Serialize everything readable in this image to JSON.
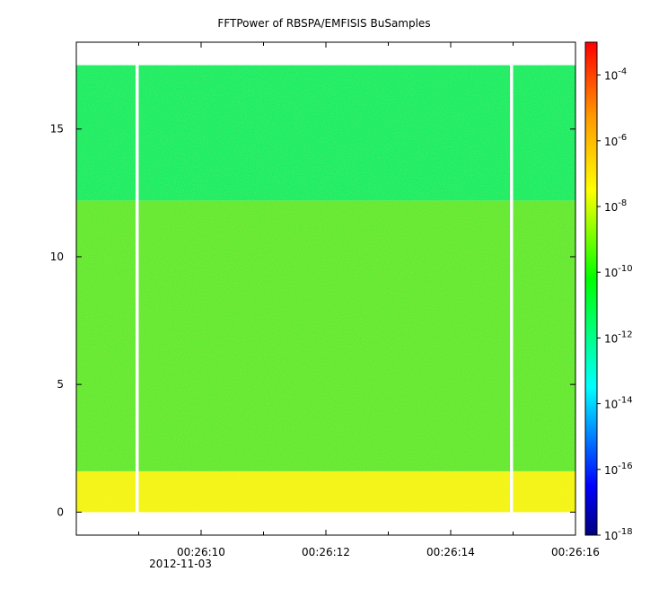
{
  "chart_data": {
    "type": "heatmap",
    "title": "FFTPower of RBSPA/EMFISIS  BuSamples",
    "xlabel": "",
    "ylabel": "",
    "x_date_label": "2012-11-03",
    "x_ticks": [
      "00:26:10",
      "00:26:12",
      "00:26:14",
      "00:26:16"
    ],
    "x_tick_seconds": [
      10,
      12,
      14,
      16
    ],
    "xlim_seconds": [
      8.0,
      16.0
    ],
    "y_ticks": [
      "0",
      "5",
      "10",
      "15"
    ],
    "y_tick_values": [
      0,
      5,
      10,
      15
    ],
    "ylim": [
      -0.9,
      18.4
    ],
    "data_extent": {
      "x_seconds": [
        8.0,
        16.0
      ],
      "y": [
        0,
        17.5
      ]
    },
    "data_gaps_seconds": [
      {
        "start": 8.95,
        "end": 9.0
      },
      {
        "start": 14.95,
        "end": 15.0
      }
    ],
    "power_bands": [
      {
        "freq_range": [
          0,
          1.6
        ],
        "log10_power": -8.5,
        "color": "#f4f414"
      },
      {
        "freq_range": [
          1.6,
          12.2
        ],
        "log10_power": -10.0,
        "color": "#5ce832"
      },
      {
        "freq_range": [
          12.2,
          17.5
        ],
        "log10_power": -12.2,
        "color": "#12ec68"
      }
    ],
    "colorbar": {
      "scale": "log",
      "range": [
        1e-18,
        0.001
      ],
      "tick_labels": [
        {
          "base": "10",
          "exp": "-4",
          "value": -4
        },
        {
          "base": "10",
          "exp": "-6",
          "value": -6
        },
        {
          "base": "10",
          "exp": "-8",
          "value": -8
        },
        {
          "base": "10",
          "exp": "-10",
          "value": -10
        },
        {
          "base": "10",
          "exp": "-12",
          "value": -12
        },
        {
          "base": "10",
          "exp": "-14",
          "value": -14
        },
        {
          "base": "10",
          "exp": "-16",
          "value": -16
        },
        {
          "base": "10",
          "exp": "-18",
          "value": -18
        }
      ],
      "colormap": [
        "#00007f",
        "#0000ff",
        "#00ffff",
        "#00ff00",
        "#ffff00",
        "#ff0000"
      ]
    },
    "grid": false
  }
}
